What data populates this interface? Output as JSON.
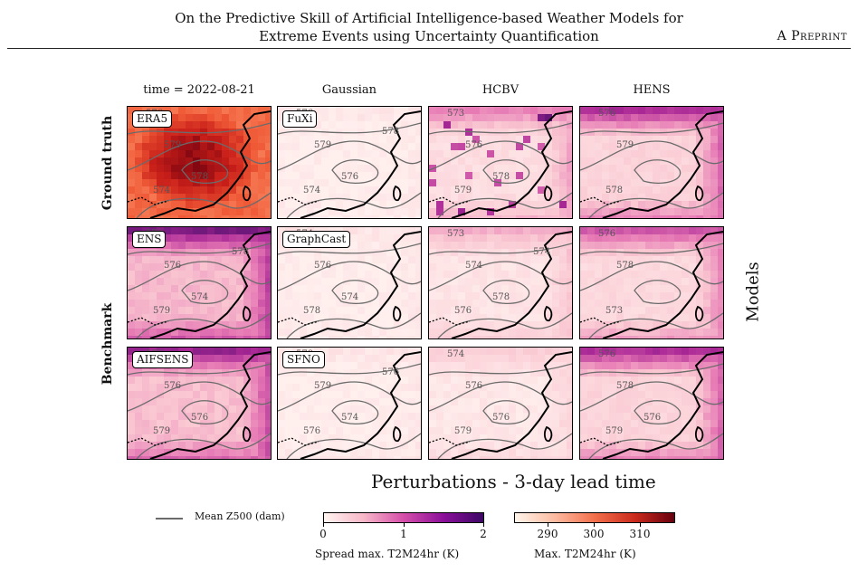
{
  "header": {
    "title_line1": "On the Predictive Skill of Artificial Intelligence-based Weather Models for",
    "title_line2": "Extreme Events using Uncertainty Quantification",
    "right_label": "A Preprint"
  },
  "figure": {
    "column_labels": [
      "time = 2022-08-21",
      "Gaussian",
      "HCBV",
      "HENS"
    ],
    "row_group_labels": [
      "Ground truth",
      "Benchmark"
    ],
    "side_label": "Models",
    "panels": [
      {
        "label": "ERA5",
        "contours": [
          "576",
          "579",
          "574",
          "578"
        ]
      },
      {
        "label": "FuXi",
        "contours": [
          "576",
          "579",
          "574",
          "576",
          "578"
        ]
      },
      {
        "label": "",
        "contours": [
          "573",
          "576",
          "579",
          "578"
        ]
      },
      {
        "label": "",
        "contours": [
          "576",
          "579",
          "578"
        ]
      },
      {
        "label": "ENS",
        "contours": [
          "573",
          "576",
          "579",
          "574",
          "578"
        ]
      },
      {
        "label": "GraphCast",
        "contours": [
          "574",
          "576",
          "578",
          "574"
        ]
      },
      {
        "label": "",
        "contours": [
          "573",
          "574",
          "576",
          "578",
          "574"
        ]
      },
      {
        "label": "",
        "contours": [
          "576",
          "578",
          "573"
        ]
      },
      {
        "label": "AIFSENS",
        "contours": [
          "573",
          "576",
          "579",
          "576"
        ]
      },
      {
        "label": "SFNO",
        "contours": [
          "578",
          "579",
          "576",
          "574",
          "576"
        ]
      },
      {
        "label": "",
        "contours": [
          "574",
          "576",
          "579",
          "576"
        ]
      },
      {
        "label": "",
        "contours": [
          "576",
          "578",
          "579",
          "576"
        ]
      }
    ],
    "caption": "Perturbations - 3-day lead time",
    "legend_label": "Mean Z500 (dam)",
    "colorbar_spread": {
      "ticks": [
        "0",
        "1",
        "2"
      ],
      "label": "Spread max. T2M24hr (K)",
      "colors": [
        "#fff5f0",
        "#f7b7c8",
        "#d54fa9",
        "#8b0f9a",
        "#3b0764"
      ]
    },
    "colorbar_max": {
      "ticks": [
        "290",
        "300",
        "310"
      ],
      "label": "Max. T2M24hr (K)",
      "colors": [
        "#fff5eb",
        "#fcbba1",
        "#f2704c",
        "#cb2b1d",
        "#67000d"
      ]
    }
  }
}
